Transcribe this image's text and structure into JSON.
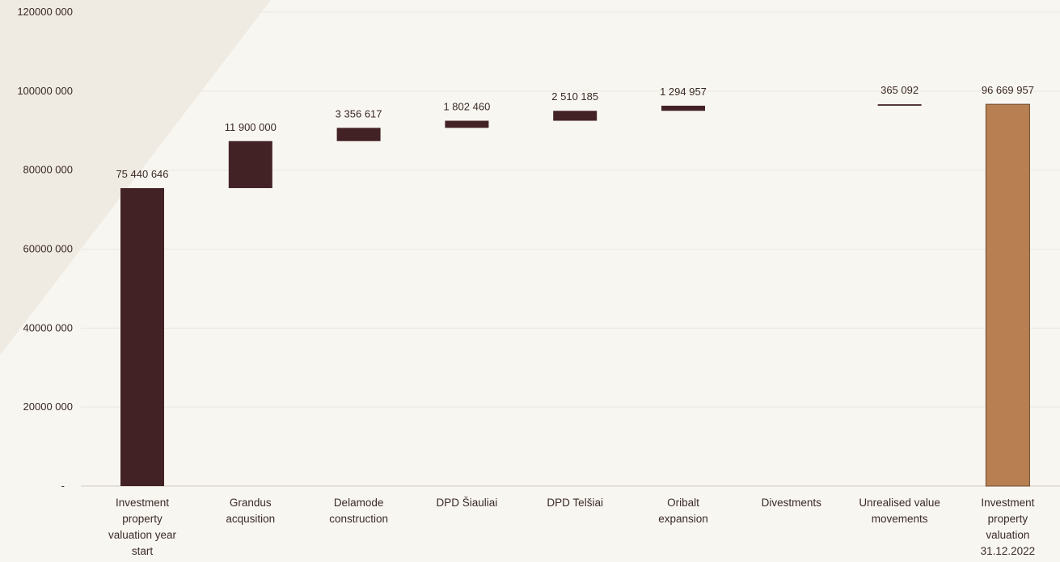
{
  "chart_data": {
    "type": "bar",
    "subtype": "waterfall",
    "title": "",
    "xlabel": "",
    "ylabel": "",
    "ylim": [
      0,
      120000000
    ],
    "y_ticks": [
      0,
      20000000,
      40000000,
      60000000,
      80000000,
      100000000,
      120000000
    ],
    "y_tick_labels": [
      "-",
      "20000 000",
      "40000 000",
      "60000 000",
      "80000 000",
      "100000 000",
      "120000 000"
    ],
    "grid": true,
    "legend": "none",
    "categories": [
      [
        "Investment",
        "property",
        "valuation year",
        "start"
      ],
      [
        "Grandus",
        "acqusition"
      ],
      [
        "Delamode",
        "construction"
      ],
      [
        "DPD Šiauliai"
      ],
      [
        "DPD Telšiai"
      ],
      [
        "Oribalt",
        "expansion"
      ],
      [
        "Divestments"
      ],
      [
        "Unrealised value",
        "movements"
      ],
      [
        "Investment",
        "property",
        "valuation",
        "31.12.2022"
      ]
    ],
    "values": [
      75440646,
      11900000,
      3356617,
      1802460,
      2510185,
      1294957,
      0,
      365092,
      96669957
    ],
    "value_labels": [
      "75 440 646",
      "11 900 000",
      "3 356 617",
      "1 802 460",
      "2 510 185",
      "1 294 957",
      "",
      "365 092",
      "96 669 957"
    ],
    "bar_kinds": [
      "total",
      "delta",
      "delta",
      "delta",
      "delta",
      "delta",
      "delta",
      "delta",
      "total"
    ],
    "colors": {
      "total_start": "#432226",
      "delta": "#432226",
      "total_end": "#b88052",
      "grid": "#ece8df",
      "background": "#f8f6f1",
      "decor": "#efebe3"
    }
  }
}
